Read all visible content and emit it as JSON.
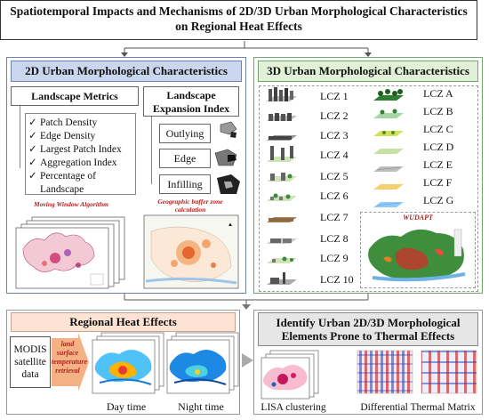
{
  "title": {
    "line1": "Spatiotemporal Impacts and Mechanisms of 2D/3D Urban Morphological Characteristics",
    "line2": "on Regional Heat Effects"
  },
  "panel_2d": {
    "header": "2D Urban Morphological Characteristics",
    "landscape_metrics": {
      "title": "Landscape Metrics",
      "items": [
        "Patch Density",
        "Edge Density",
        "Largest Patch Index",
        "Aggregation Index",
        "Percentage of",
        "Landscape"
      ]
    },
    "expansion": {
      "title_line1": "Landscape",
      "title_line2": "Expansion Index",
      "items": [
        "Outlying",
        "Edge",
        "Infilling"
      ]
    },
    "caption_moving": "Moving Window Algorithm",
    "caption_buffer_line1": "Geographic buffer zone",
    "caption_buffer_line2": "calculation"
  },
  "panel_3d": {
    "header": "3D Urban Morphological Characteristics",
    "lcz_left": [
      "LCZ 1",
      "LCZ 2",
      "LCZ 3",
      "LCZ 4",
      "LCZ 5",
      "LCZ 6",
      "LCZ 7",
      "LCZ 8",
      "LCZ 9",
      "LCZ 10"
    ],
    "lcz_right": [
      "LCZ A",
      "LCZ B",
      "LCZ C",
      "LCZ D",
      "LCZ E",
      "LCZ F",
      "LCZ G"
    ],
    "wudapt_label": "WUDAPT"
  },
  "panel_heat": {
    "header": "Regional Heat Effects",
    "modis_line1": "MODIS",
    "modis_line2": "satellite",
    "modis_line3": "data",
    "retrieval_line1": "land",
    "retrieval_line2": "surface",
    "retrieval_line3": "temperature",
    "retrieval_line4": "retrieval",
    "day_label": "Day time",
    "night_label": "Night time"
  },
  "panel_identify": {
    "header_line1": "Identify Urban 2D/3D Morphological",
    "header_line2": "Elements Prone to Thermal Effects",
    "lisa_label": "LISA clustering",
    "matrix_label": "Differential Thermal Matrix"
  },
  "colors": {
    "blue_header": "#c9d6ee",
    "green_header": "#e1f0d6",
    "peach_header": "#fde3d3",
    "accent_red": "#b22222"
  }
}
